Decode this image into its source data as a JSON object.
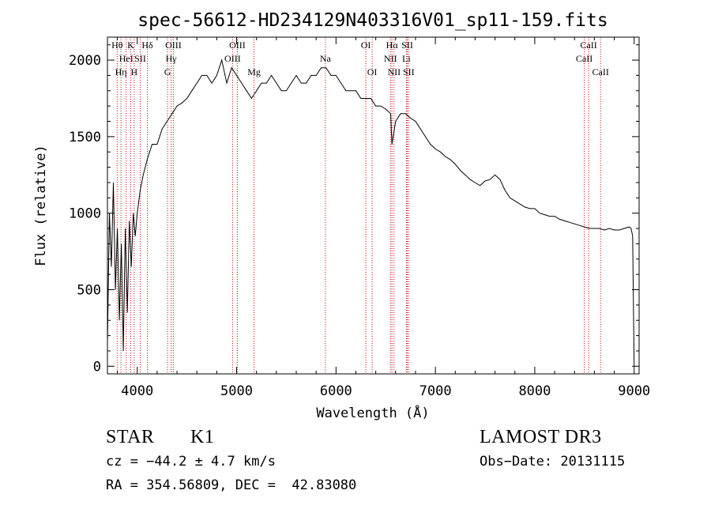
{
  "chart_data": {
    "type": "line",
    "title": "spec-56612-HD234129N403316V01_sp11-159.fits",
    "xlabel": "Wavelength (Å)",
    "ylabel": "Flux (relative)",
    "xlim": [
      3700,
      9050
    ],
    "ylim": [
      -50,
      2150
    ],
    "xticks": [
      4000,
      5000,
      6000,
      7000,
      8000,
      9000
    ],
    "yticks": [
      0,
      500,
      1000,
      1500,
      2000
    ],
    "series": [
      {
        "name": "flux",
        "x": [
          3700,
          3720,
          3740,
          3760,
          3780,
          3800,
          3820,
          3840,
          3860,
          3880,
          3900,
          3920,
          3940,
          3960,
          3980,
          4000,
          4030,
          4060,
          4100,
          4150,
          4200,
          4250,
          4300,
          4350,
          4400,
          4450,
          4500,
          4550,
          4600,
          4650,
          4700,
          4750,
          4800,
          4850,
          4900,
          4950,
          5000,
          5050,
          5100,
          5150,
          5200,
          5250,
          5300,
          5350,
          5400,
          5450,
          5500,
          5550,
          5600,
          5650,
          5700,
          5750,
          5800,
          5850,
          5900,
          5950,
          6000,
          6050,
          6100,
          6150,
          6200,
          6250,
          6300,
          6350,
          6400,
          6450,
          6500,
          6550,
          6563,
          6600,
          6650,
          6700,
          6750,
          6800,
          6850,
          6900,
          6950,
          7000,
          7050,
          7100,
          7150,
          7200,
          7250,
          7300,
          7350,
          7400,
          7450,
          7500,
          7550,
          7600,
          7650,
          7700,
          7750,
          7800,
          7850,
          7900,
          7950,
          8000,
          8050,
          8100,
          8150,
          8200,
          8250,
          8300,
          8350,
          8400,
          8450,
          8500,
          8550,
          8600,
          8650,
          8700,
          8750,
          8800,
          8850,
          8900,
          8950,
          8970,
          8985,
          9000
        ],
        "y": [
          150,
          1000,
          650,
          1200,
          500,
          900,
          300,
          800,
          100,
          900,
          350,
          950,
          650,
          1000,
          850,
          1000,
          1150,
          1250,
          1350,
          1450,
          1450,
          1550,
          1600,
          1650,
          1700,
          1720,
          1750,
          1800,
          1850,
          1900,
          1900,
          1850,
          1900,
          2000,
          1850,
          1950,
          1900,
          1850,
          1800,
          1750,
          1800,
          1850,
          1850,
          1900,
          1850,
          1800,
          1800,
          1850,
          1900,
          1850,
          1850,
          1900,
          1900,
          1950,
          1950,
          1900,
          1900,
          1850,
          1800,
          1800,
          1800,
          1750,
          1750,
          1750,
          1700,
          1700,
          1680,
          1650,
          1450,
          1600,
          1650,
          1650,
          1620,
          1600,
          1550,
          1500,
          1450,
          1420,
          1400,
          1370,
          1350,
          1320,
          1280,
          1250,
          1220,
          1200,
          1180,
          1210,
          1220,
          1250,
          1220,
          1150,
          1100,
          1080,
          1060,
          1040,
          1030,
          1030,
          1000,
          990,
          980,
          980,
          960,
          950,
          940,
          930,
          920,
          910,
          900,
          900,
          900,
          890,
          900,
          890,
          890,
          900,
          910,
          900,
          850,
          0
        ]
      }
    ],
    "line_labels": [
      {
        "text": "Hθ",
        "x": 3798,
        "row": 1
      },
      {
        "text": "Hη",
        "x": 3836,
        "row": 3
      },
      {
        "text": "HeI",
        "x": 3889,
        "row": 2
      },
      {
        "text": "K",
        "x": 3934,
        "row": 1
      },
      {
        "text": "H",
        "x": 3969,
        "row": 3
      },
      {
        "text": "SII",
        "x": 4030,
        "row": 2
      },
      {
        "text": "Hδ",
        "x": 4102,
        "row": 1
      },
      {
        "text": "G",
        "x": 4305,
        "row": 3
      },
      {
        "text": "Hγ",
        "x": 4341,
        "row": 2
      },
      {
        "text": "OIII",
        "x": 4363,
        "row": 1
      },
      {
        "text": "OIII",
        "x": 4959,
        "row": 2
      },
      {
        "text": "OIII",
        "x": 5007,
        "row": 1
      },
      {
        "text": "Mg",
        "x": 5175,
        "row": 3
      },
      {
        "text": "Na",
        "x": 5893,
        "row": 2
      },
      {
        "text": "OI",
        "x": 6300,
        "row": 1
      },
      {
        "text": "OI",
        "x": 6364,
        "row": 3
      },
      {
        "text": "NII",
        "x": 6548,
        "row": 2
      },
      {
        "text": "Hα",
        "x": 6563,
        "row": 1
      },
      {
        "text": "NII",
        "x": 6584,
        "row": 3
      },
      {
        "text": "Li",
        "x": 6708,
        "row": 2
      },
      {
        "text": "SII",
        "x": 6717,
        "row": 1
      },
      {
        "text": "SII",
        "x": 6731,
        "row": 3
      },
      {
        "text": "CaII",
        "x": 8498,
        "row": 2
      },
      {
        "text": "CaII",
        "x": 8542,
        "row": 1
      },
      {
        "text": "CaII",
        "x": 8662,
        "row": 3
      }
    ],
    "grid": false,
    "legend": "none"
  },
  "info": {
    "object_class": "STAR",
    "subclass": "K1",
    "release": "LAMOST DR3",
    "cz": "cz = −44.2 ± 4.7 km/s",
    "obs_date": "Obs−Date: 20131115",
    "coords": "RA = 354.56809, DEC =  42.83080"
  }
}
